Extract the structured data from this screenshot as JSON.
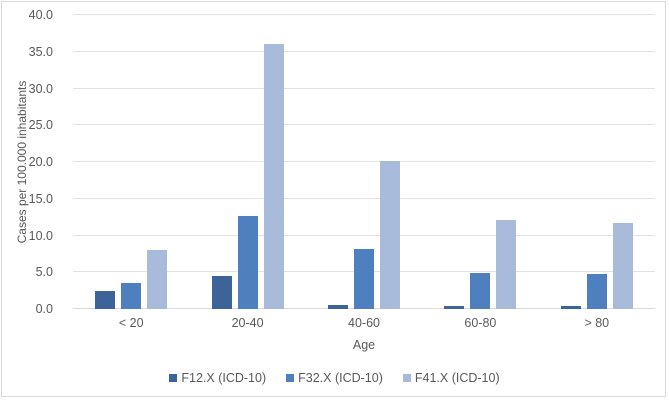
{
  "chart_data": {
    "type": "bar",
    "title": "",
    "xlabel": "Age",
    "ylabel": "Cases per 100.000 inhabitants",
    "ylim": [
      0,
      40
    ],
    "yticks": [
      "0.0",
      "5.0",
      "10.0",
      "15.0",
      "20.0",
      "25.0",
      "30.0",
      "35.0",
      "40.0"
    ],
    "grid": true,
    "legend_position": "bottom",
    "categories": [
      "< 20",
      "20-40",
      "40-60",
      "60-80",
      "> 80"
    ],
    "series": [
      {
        "name": "F12.X (ICD-10)",
        "color": "#3d6499",
        "values": [
          2.5,
          4.5,
          0.6,
          0.4,
          0.45
        ]
      },
      {
        "name": "F32.X (ICD-10)",
        "color": "#4e7fbf",
        "values": [
          3.5,
          12.7,
          8.2,
          4.9,
          4.7
        ]
      },
      {
        "name": "F41.X (ICD-10)",
        "color": "#a9bbda",
        "values": [
          8.0,
          36.0,
          20.1,
          12.1,
          11.7
        ]
      }
    ]
  }
}
